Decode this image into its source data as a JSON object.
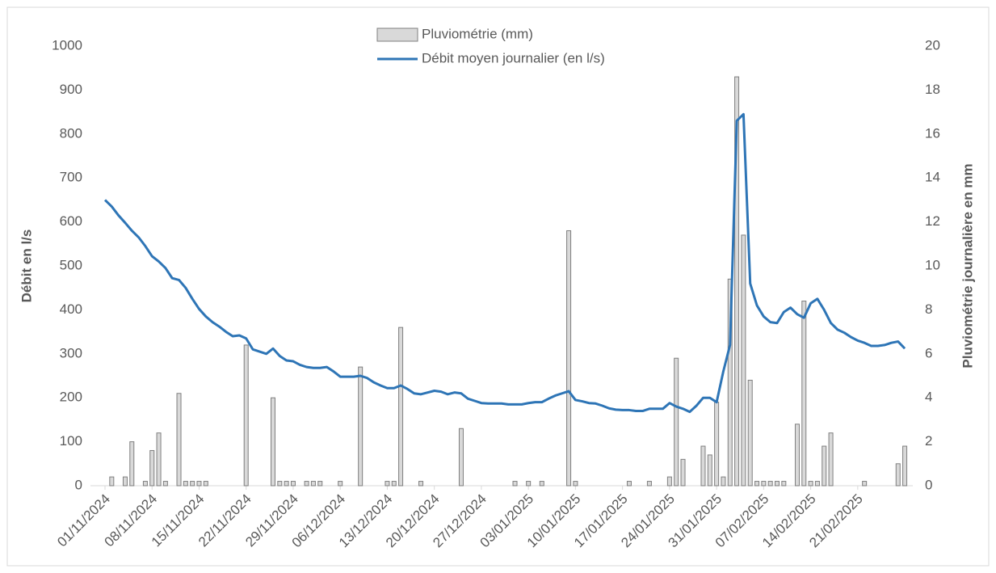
{
  "chart_data": {
    "type": "bar-line",
    "y_label": "Débit en l/s",
    "y2_label": "Pluviométrie journalière en mm",
    "legend": "top",
    "categories": [
      "01/11/2024",
      null,
      null,
      null,
      null,
      null,
      null,
      "08/11/2024",
      null,
      null,
      null,
      null,
      null,
      null,
      "15/11/2024",
      null,
      null,
      null,
      null,
      null,
      null,
      "22/11/2024",
      null,
      null,
      null,
      null,
      null,
      null,
      "29/11/2024",
      null,
      null,
      null,
      null,
      null,
      null,
      "06/12/2024",
      null,
      null,
      null,
      null,
      null,
      null,
      "13/12/2024",
      null,
      null,
      null,
      null,
      null,
      null,
      "20/12/2024",
      null,
      null,
      null,
      null,
      null,
      null,
      "27/12/2024",
      null,
      null,
      null,
      null,
      null,
      null,
      "03/01/2025",
      null,
      null,
      null,
      null,
      null,
      null,
      "10/01/2025",
      null,
      null,
      null,
      null,
      null,
      null,
      "17/01/2025",
      null,
      null,
      null,
      null,
      null,
      null,
      "24/01/2025",
      null,
      null,
      null,
      null,
      null,
      null,
      "31/01/2025",
      null,
      null,
      null,
      null,
      null,
      null,
      "07/02/2025",
      null,
      null,
      null,
      null,
      null,
      null,
      "14/02/2025",
      null,
      null,
      null,
      null,
      null,
      null,
      "21/02/2025",
      null,
      null,
      null,
      null,
      null,
      null,
      null
    ],
    "series": [
      {
        "name": "Pluviométrie (mm)",
        "type": "bar",
        "axis": "y2",
        "color": "#d9d9d9",
        "stroke": "#7f7f7f",
        "values": [
          0,
          0.4,
          0,
          0.4,
          2,
          0,
          0.2,
          1.6,
          2.4,
          0.2,
          0,
          4.2,
          0.2,
          0.2,
          0.2,
          0.2,
          0,
          0,
          0,
          0,
          0,
          6.4,
          0,
          0,
          0,
          4,
          0.2,
          0.2,
          0.2,
          0,
          0.2,
          0.2,
          0.2,
          0,
          0,
          0.2,
          0,
          0,
          5.4,
          0,
          0,
          0,
          0.2,
          0.2,
          7.2,
          0,
          0,
          0.2,
          0,
          0,
          0,
          0,
          0,
          2.6,
          0,
          0,
          0,
          0,
          0,
          0,
          0,
          0.2,
          0,
          0.2,
          0,
          0.2,
          0,
          0,
          0,
          11.6,
          0.2,
          0,
          0,
          0,
          0,
          0,
          0,
          0,
          0.2,
          0,
          0,
          0.2,
          0,
          0,
          0.4,
          5.8,
          1.2,
          0,
          0,
          1.8,
          1.4,
          3.8,
          0.4,
          9.4,
          18.6,
          11.4,
          4.8,
          0.2,
          0.2,
          0.2,
          0.2,
          0.2,
          0,
          2.8,
          8.4,
          0.2,
          0.2,
          1.8,
          2.4,
          0,
          0,
          0,
          0,
          0.2,
          0,
          0,
          0,
          0,
          1,
          1.8
        ]
      },
      {
        "name": "Débit moyen journalier (en l/s)",
        "type": "line",
        "axis": "y",
        "color": "#2e75b6",
        "values": [
          650,
          635,
          615,
          598,
          580,
          565,
          545,
          522,
          510,
          495,
          472,
          468,
          450,
          425,
          402,
          385,
          372,
          362,
          350,
          340,
          342,
          335,
          310,
          305,
          300,
          312,
          295,
          285,
          283,
          275,
          270,
          268,
          268,
          270,
          260,
          248,
          248,
          248,
          250,
          245,
          235,
          228,
          222,
          222,
          228,
          220,
          210,
          208,
          212,
          216,
          214,
          208,
          212,
          210,
          198,
          193,
          188,
          187,
          187,
          187,
          185,
          185,
          185,
          188,
          190,
          190,
          198,
          205,
          210,
          215,
          195,
          192,
          188,
          187,
          182,
          176,
          173,
          172,
          172,
          170,
          170,
          175,
          175,
          175,
          188,
          180,
          175,
          168,
          182,
          200,
          200,
          190,
          260,
          320,
          830,
          845,
          460,
          410,
          385,
          372,
          370,
          395,
          405,
          390,
          382,
          415,
          425,
          400,
          370,
          355,
          348,
          338,
          330,
          325,
          318,
          318,
          320,
          325,
          328,
          312
        ]
      }
    ],
    "ylim": [
      0,
      1000
    ],
    "yticks": [
      0,
      100,
      200,
      300,
      400,
      500,
      600,
      700,
      800,
      900,
      1000
    ],
    "y2lim": [
      0,
      20
    ],
    "y2ticks": [
      0,
      2,
      4,
      6,
      8,
      10,
      12,
      14,
      16,
      18,
      20
    ]
  }
}
